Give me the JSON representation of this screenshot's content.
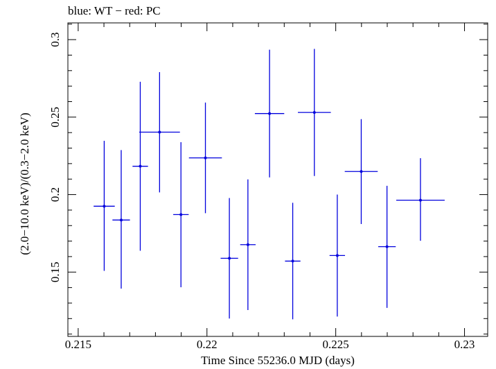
{
  "chart_data": {
    "type": "scatter",
    "title": "blue: WT − red: PC",
    "xlabel": "Time Since 55236.0 MJD (days)",
    "ylabel": "(2.0−10.0 keV)/(0.3−2.0 keV)",
    "xlim": [
      0.2146,
      0.2309
    ],
    "ylim": [
      0.1085,
      0.3108
    ],
    "x_ticks": [
      0.215,
      0.22,
      0.225,
      0.23
    ],
    "x_tick_labels": [
      "0.215",
      "0.22",
      "0.225",
      "0.23"
    ],
    "y_ticks": [
      0.15,
      0.2,
      0.25,
      0.3
    ],
    "y_tick_labels": [
      "0.15",
      "0.2",
      "0.25",
      "0.3"
    ],
    "grid": false,
    "series": [
      {
        "color": "#0000dd",
        "points": [
          {
            "x": 0.21601,
            "y": 0.1925,
            "xerr": 0.00041,
            "ylo": 0.1508,
            "yhi": 0.2347
          },
          {
            "x": 0.21667,
            "y": 0.1836,
            "xerr": 0.00034,
            "ylo": 0.1393,
            "yhi": 0.2287
          },
          {
            "x": 0.21741,
            "y": 0.2183,
            "xerr": 0.0003,
            "ylo": 0.1638,
            "yhi": 0.2728
          },
          {
            "x": 0.21816,
            "y": 0.2403,
            "xerr": 0.00079,
            "ylo": 0.2014,
            "yhi": 0.279
          },
          {
            "x": 0.21899,
            "y": 0.1871,
            "xerr": 0.0003,
            "ylo": 0.1402,
            "yhi": 0.2338
          },
          {
            "x": 0.21994,
            "y": 0.2237,
            "xerr": 0.00064,
            "ylo": 0.188,
            "yhi": 0.2594
          },
          {
            "x": 0.22087,
            "y": 0.1589,
            "xerr": 0.00034,
            "ylo": 0.12,
            "yhi": 0.1978
          },
          {
            "x": 0.22159,
            "y": 0.1677,
            "xerr": 0.0003,
            "ylo": 0.1255,
            "yhi": 0.2098
          },
          {
            "x": 0.22243,
            "y": 0.2523,
            "xerr": 0.00057,
            "ylo": 0.2111,
            "yhi": 0.2935
          },
          {
            "x": 0.22333,
            "y": 0.1571,
            "xerr": 0.0003,
            "ylo": 0.1195,
            "yhi": 0.1947
          },
          {
            "x": 0.22417,
            "y": 0.253,
            "xerr": 0.00064,
            "ylo": 0.212,
            "yhi": 0.294
          },
          {
            "x": 0.22506,
            "y": 0.1607,
            "xerr": 0.0003,
            "ylo": 0.1213,
            "yhi": 0.2
          },
          {
            "x": 0.22599,
            "y": 0.2149,
            "xerr": 0.00064,
            "ylo": 0.181,
            "yhi": 0.2487
          },
          {
            "x": 0.22699,
            "y": 0.1664,
            "xerr": 0.00034,
            "ylo": 0.1269,
            "yhi": 0.2057
          },
          {
            "x": 0.22829,
            "y": 0.1964,
            "xerr": 0.00094,
            "ylo": 0.1702,
            "yhi": 0.2235
          }
        ]
      }
    ]
  }
}
